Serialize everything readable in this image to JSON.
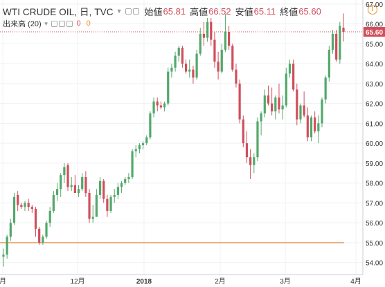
{
  "legend": {
    "symbol": "WTI CRUDE OIL, 日, TVC",
    "open_label": "始値",
    "open_value": "65.81",
    "high_label": "高値",
    "high_value": "66.52",
    "low_label": "安値",
    "low_value": "65.11",
    "close_label": "終値",
    "close_value": "65.60"
  },
  "volume": {
    "label": "出来高 (20)",
    "value1": "0",
    "value2": "0"
  },
  "colors": {
    "up": "#52a86a",
    "down": "#d04e5b",
    "price_line": "#d04e5b",
    "hline": "#e8a36a",
    "grid": "#eef0f3",
    "axis_text": "#333333"
  },
  "icons": {
    "alert": "alert-circle-icon",
    "settings": "settings-square-icon",
    "eye": "eye-square-icon",
    "close": "close-square-icon"
  },
  "alert_glyph": "!",
  "chart_data": {
    "type": "candlestick",
    "y_axis": {
      "min": 53.4,
      "max": 67.2,
      "ticks": [
        "54.00",
        "55.00",
        "56.00",
        "57.00",
        "58.00",
        "59.00",
        "60.00",
        "61.00",
        "62.00",
        "63.00",
        "64.00",
        "65.00",
        "66.00",
        "67.00"
      ],
      "side": "right"
    },
    "x_axis_labels": [
      "月",
      "12月",
      "2018",
      "2月",
      "3月",
      "4月"
    ],
    "current_price_label": "65.60",
    "horizontal_line": 55.0,
    "grid": true,
    "candles": [
      [
        54.3,
        54.7,
        53.8,
        54.4
      ],
      [
        54.4,
        55.4,
        54.2,
        55.3
      ],
      [
        55.3,
        56.2,
        55.1,
        56.0
      ],
      [
        56.0,
        57.5,
        55.9,
        57.3
      ],
      [
        57.4,
        57.6,
        56.6,
        56.9
      ],
      [
        56.9,
        57.0,
        56.7,
        56.8
      ],
      [
        56.8,
        57.1,
        56.6,
        57.0
      ],
      [
        57.0,
        57.2,
        56.6,
        56.8
      ],
      [
        56.8,
        56.9,
        56.5,
        56.7
      ],
      [
        56.7,
        56.8,
        55.3,
        55.7
      ],
      [
        55.7,
        55.8,
        54.9,
        55.0
      ],
      [
        55.0,
        55.4,
        54.9,
        55.3
      ],
      [
        55.3,
        56.1,
        55.2,
        56.0
      ],
      [
        56.0,
        56.8,
        55.8,
        56.6
      ],
      [
        56.6,
        57.6,
        56.5,
        57.4
      ],
      [
        57.4,
        58.0,
        57.1,
        57.7
      ],
      [
        57.7,
        58.5,
        57.3,
        58.4
      ],
      [
        58.4,
        59.0,
        58.0,
        58.8
      ],
      [
        58.9,
        59.0,
        57.6,
        57.8
      ],
      [
        57.8,
        58.3,
        57.6,
        57.9
      ],
      [
        57.9,
        58.4,
        57.6,
        57.5
      ],
      [
        57.5,
        57.9,
        57.3,
        57.7
      ],
      [
        57.7,
        58.5,
        57.6,
        58.3
      ],
      [
        58.3,
        58.6,
        57.3,
        57.5
      ],
      [
        57.5,
        57.7,
        56.0,
        56.2
      ],
      [
        56.2,
        56.9,
        56.0,
        56.3
      ],
      [
        56.3,
        57.7,
        56.3,
        57.4
      ],
      [
        57.4,
        58.3,
        57.2,
        58.1
      ],
      [
        58.1,
        58.2,
        57.0,
        57.2
      ],
      [
        57.2,
        57.4,
        56.3,
        56.6
      ],
      [
        56.6,
        57.4,
        56.5,
        57.3
      ],
      [
        57.3,
        57.7,
        57.0,
        57.4
      ],
      [
        57.4,
        58.0,
        57.2,
        57.8
      ],
      [
        57.8,
        58.1,
        57.5,
        58.0
      ],
      [
        58.0,
        58.3,
        57.9,
        58.2
      ],
      [
        58.2,
        58.5,
        58.0,
        58.3
      ],
      [
        58.3,
        59.7,
        58.2,
        59.6
      ],
      [
        59.6,
        59.9,
        59.3,
        59.7
      ],
      [
        59.7,
        60.0,
        59.5,
        59.9
      ],
      [
        59.9,
        60.1,
        59.7,
        60.0
      ],
      [
        60.0,
        60.4,
        59.9,
        60.3
      ],
      [
        60.3,
        61.6,
        60.2,
        61.5
      ],
      [
        61.5,
        62.3,
        61.3,
        62.1
      ],
      [
        62.1,
        62.3,
        61.6,
        61.9
      ],
      [
        61.9,
        62.1,
        61.7,
        61.8
      ],
      [
        61.8,
        62.1,
        61.6,
        62.0
      ],
      [
        62.0,
        63.8,
        61.9,
        63.6
      ],
      [
        63.6,
        64.0,
        63.3,
        63.8
      ],
      [
        63.8,
        64.6,
        63.6,
        64.4
      ],
      [
        64.4,
        64.9,
        64.1,
        64.8
      ],
      [
        64.8,
        64.9,
        63.8,
        64.0
      ],
      [
        64.0,
        64.2,
        63.5,
        63.6
      ],
      [
        63.6,
        64.2,
        63.3,
        63.7
      ],
      [
        63.7,
        63.9,
        63.0,
        63.3
      ],
      [
        63.3,
        64.7,
        63.2,
        64.5
      ],
      [
        64.5,
        65.8,
        64.4,
        65.5
      ],
      [
        65.5,
        66.1,
        64.9,
        65.3
      ],
      [
        65.3,
        66.3,
        65.1,
        66.1
      ],
      [
        66.1,
        66.3,
        64.9,
        65.2
      ],
      [
        65.2,
        65.6,
        63.8,
        64.1
      ],
      [
        64.1,
        64.6,
        63.2,
        63.6
      ],
      [
        63.6,
        65.0,
        63.5,
        64.7
      ],
      [
        64.7,
        66.5,
        64.6,
        65.6
      ],
      [
        65.6,
        65.9,
        64.7,
        64.9
      ],
      [
        64.9,
        65.0,
        63.6,
        63.7
      ],
      [
        63.7,
        64.0,
        62.8,
        63.0
      ],
      [
        63.0,
        63.2,
        61.0,
        61.2
      ],
      [
        61.2,
        61.4,
        59.8,
        60.0
      ],
      [
        60.0,
        60.6,
        59.0,
        59.3
      ],
      [
        59.3,
        59.7,
        58.2,
        58.9
      ],
      [
        58.9,
        59.5,
        58.5,
        59.3
      ],
      [
        59.3,
        61.3,
        59.1,
        61.1
      ],
      [
        61.1,
        61.6,
        60.4,
        61.5
      ],
      [
        61.5,
        62.7,
        61.3,
        62.4
      ],
      [
        62.4,
        62.9,
        61.9,
        62.0
      ],
      [
        62.0,
        62.8,
        61.4,
        61.6
      ],
      [
        61.6,
        62.4,
        61.2,
        62.3
      ],
      [
        62.3,
        63.0,
        61.5,
        61.7
      ],
      [
        61.7,
        62.4,
        61.2,
        61.9
      ],
      [
        61.9,
        63.8,
        61.8,
        63.5
      ],
      [
        63.5,
        64.2,
        63.3,
        64.0
      ],
      [
        64.0,
        64.2,
        62.6,
        62.7
      ],
      [
        62.7,
        63.0,
        60.9,
        61.2
      ],
      [
        61.2,
        62.0,
        61.0,
        61.9
      ],
      [
        61.9,
        62.6,
        61.3,
        61.4
      ],
      [
        61.4,
        61.8,
        60.1,
        60.3
      ],
      [
        60.3,
        61.4,
        60.1,
        61.3
      ],
      [
        61.3,
        61.6,
        60.5,
        60.6
      ],
      [
        60.6,
        61.4,
        60.0,
        61.0
      ],
      [
        61.0,
        62.3,
        60.8,
        62.2
      ],
      [
        62.2,
        63.4,
        62.0,
        63.3
      ],
      [
        63.3,
        64.9,
        63.1,
        64.7
      ],
      [
        64.7,
        65.7,
        64.5,
        65.5
      ],
      [
        65.5,
        65.7,
        64.1,
        64.2
      ],
      [
        64.2,
        66.1,
        64.0,
        65.9
      ],
      [
        65.81,
        66.52,
        65.11,
        65.6
      ]
    ]
  }
}
